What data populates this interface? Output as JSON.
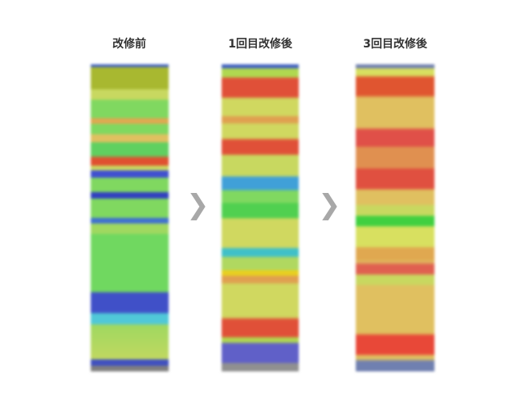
{
  "panels": [
    {
      "title": "改修前"
    },
    {
      "title": "1回目改修後"
    },
    {
      "title": "3回目改修後"
    }
  ],
  "arrows": [
    {
      "icon": "chevron-right-icon",
      "glyph": "❯"
    },
    {
      "icon": "chevron-right-icon",
      "glyph": "❯"
    }
  ]
}
